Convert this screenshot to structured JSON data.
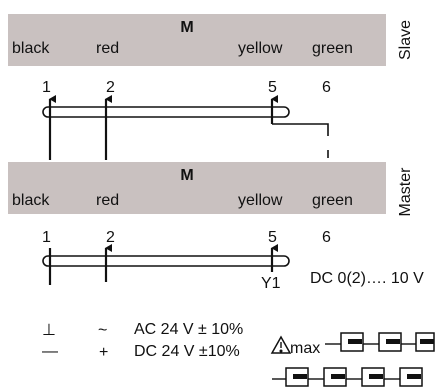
{
  "slave": {
    "section_label": "Slave",
    "module_letter": "M",
    "wires": [
      "black",
      "red",
      "yellow",
      "green"
    ],
    "terminals": [
      "1",
      "2",
      "5",
      "6"
    ]
  },
  "master": {
    "section_label": "Master",
    "module_letter": "M",
    "wires": [
      "black",
      "red",
      "yellow",
      "green"
    ],
    "terminals": [
      "1",
      "2",
      "5",
      "6"
    ]
  },
  "signal": {
    "label": "Y1",
    "range": "DC 0(2)…. 10 V"
  },
  "supply": {
    "ground_symbol": "⊥",
    "minus_symbol": "—",
    "ac_symbol": "~",
    "plus_symbol": "+",
    "ac": "AC 24 V ± 10%",
    "dc": "DC 24 V ±10%"
  },
  "max_units": {
    "label": "max",
    "symbol": "warning-triangle"
  },
  "colors": {
    "header_bg": "#c9c1c0",
    "line": "#111111"
  }
}
